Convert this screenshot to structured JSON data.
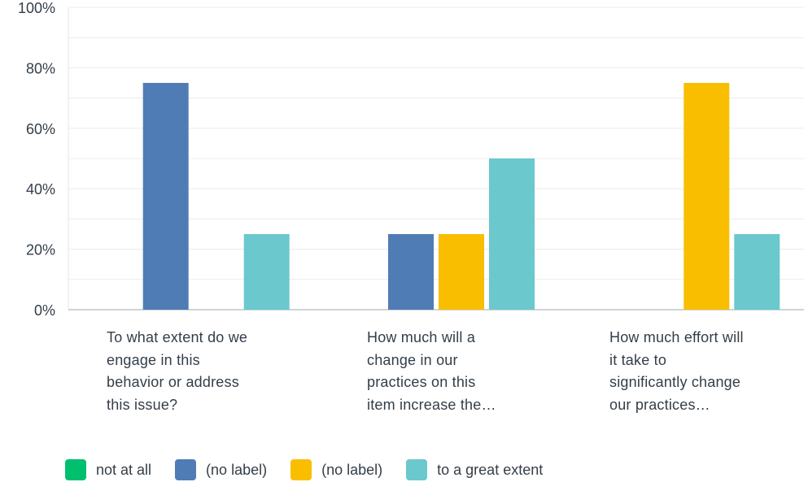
{
  "chart_data": {
    "type": "bar",
    "categories": [
      "To what extent do we engage in this behavior or address this issue?",
      "How much will a change in our practices on this item increase the…",
      "How much effort will it take to significantly change our practices…"
    ],
    "category_lines": [
      [
        "To what extent do we",
        "engage in this",
        "behavior or address",
        "this issue?"
      ],
      [
        "How much will a",
        "change in our",
        "practices on this",
        "item increase the…"
      ],
      [
        "How much effort will",
        "it take to",
        "significantly change",
        "our practices…"
      ]
    ],
    "series": [
      {
        "name": "not at all",
        "color": "#00bf6f",
        "values": [
          0,
          0,
          0
        ]
      },
      {
        "name": "(no label)",
        "color": "#507cb6",
        "values": [
          75,
          25,
          0
        ]
      },
      {
        "name": "(no label)",
        "color": "#f9be00",
        "values": [
          0,
          25,
          75
        ]
      },
      {
        "name": "to a great extent",
        "color": "#6bc8cd",
        "values": [
          25,
          50,
          25
        ]
      }
    ],
    "yticks": [
      "0%",
      "20%",
      "40%",
      "60%",
      "80%",
      "100%"
    ],
    "ylim": [
      0,
      100
    ],
    "grid": true,
    "legend_position": "bottom"
  }
}
